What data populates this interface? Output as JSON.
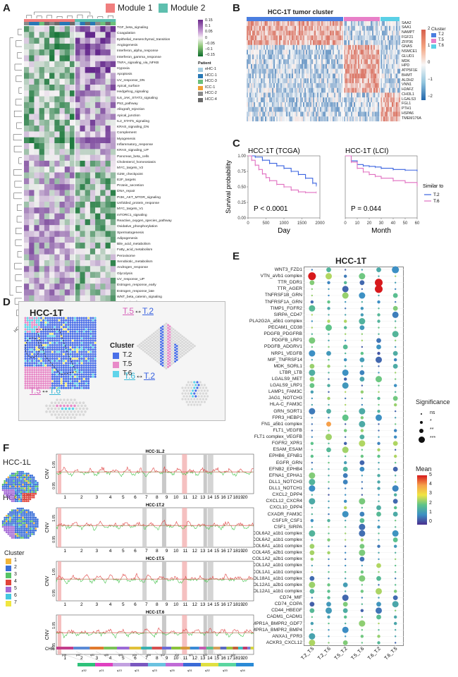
{
  "panels": {
    "a": "A",
    "b": "B",
    "c": "C",
    "d": "D",
    "e": "E",
    "f": "F"
  },
  "a": {
    "modules": [
      "Module 1",
      "Module 2"
    ],
    "module_colors": [
      "#f07e7e",
      "#5dbfae"
    ],
    "legend_title": "Patient",
    "patients": [
      "eHC-1",
      "HCC-1",
      "HCC-3",
      "ICC-1",
      "HCC-2",
      "HCC-4"
    ],
    "patient_colors": [
      "#a5cde0",
      "#2878b5",
      "#6cc07a",
      "#f0a035",
      "#8a8a8a",
      "#6b6b6b"
    ],
    "scale_ticks": [
      "0.15",
      "0.1",
      "0.05",
      "0",
      "−0.05",
      "−0.1",
      "−0.15"
    ],
    "rows": [
      "TGF_beta_signaling",
      "Coagulation",
      "Epithelial_mesenchymal_transition",
      "Angiogenesis",
      "Interferon_alpha_response",
      "Interferon_gamma_response",
      "TNFA_signaling_via_NFKB",
      "Hypoxia",
      "Apoptosis",
      "UV_response_DN",
      "Apical_surface",
      "Hedgehog_signaling",
      "IL6_JAK_STAT3_signaling",
      "P53_pathway",
      "Allograft_rejection",
      "Apical_junction",
      "IL2_STAT5_signaling",
      "KRAS_signaling_DN",
      "Complement",
      "Myogenesis",
      "Inflammatory_response",
      "KRAS_signaling_UP",
      "Pancreas_beta_cells",
      "Cholesterol_homeostasis",
      "MYC_targets_V2",
      "G2M_checkpoint",
      "E2F_targets",
      "Protein_secretion",
      "DNA_repair",
      "PI3K_AKT_MTOR_signaling",
      "Unfolded_protein_response",
      "MYC_targets_V1",
      "mTORC1_signaling",
      "Reactive_oxygen_species_pathway",
      "Oxidative_phosphorylation",
      "Spermatogenesis",
      "Adipogenesis",
      "Bile_acid_metabolism",
      "Fatty_acid_metabolism",
      "Peroxisome",
      "Xenobiotic_metabolism",
      "Androgen_response",
      "Glycolysis",
      "UV_response_UP",
      "Estrogen_response_early",
      "Estrogen_response_late",
      "WNT_beta_catenin_signaling",
      "Notch_signaling",
      "Mitotic_spindle",
      "Heme_metabolism"
    ],
    "cols": [
      "HCC-4_6",
      "HCC-1_2",
      "HCC-1_3",
      "HCC-3_1",
      "HCC-4_1",
      "HCC-2_1",
      "HCC-4_3",
      "HCC-1_5",
      "HCC-1_4",
      "HCC-4_2",
      "eHC-1",
      "HCC-1_1",
      "HCC-4_5",
      "HCC-1_6",
      "HCC-2_2",
      "HCC-3_2",
      "HCC-4_4",
      "HCC-3_3"
    ]
  },
  "b": {
    "title": "HCC-1T tumor cluster",
    "cluster_label": "Cluster",
    "genes": [
      "SAA2",
      "SAA1",
      "NAMPT",
      "FGF21",
      "ZFP36",
      "GNAS",
      "NSMCE1",
      "GLUD1",
      "MDK",
      "HPD",
      "ATP5F1E",
      "BHMT",
      "ALDH2",
      "VNN1",
      "H2AFZ",
      "CHI3L1",
      "LGALS3",
      "FGL1",
      "PTH1",
      "HSPA6",
      "TMEM176A"
    ],
    "clusters": [
      "T.2",
      "T.5",
      "T.6"
    ],
    "cluster_colors": [
      "#4a7ee0",
      "#e87fc8",
      "#5ad0e6"
    ],
    "scale_ticks": [
      "2",
      "1",
      "0",
      "−1",
      "−2"
    ]
  },
  "c": {
    "chart_data": [
      {
        "type": "line",
        "title": "HCC-1T (TCGA)",
        "xlabel": "Day",
        "ylabel": "Survival probability",
        "xlim": [
          0,
          2000
        ],
        "ylim": [
          0,
          1
        ],
        "xticks": [
          "0",
          "500",
          "1000",
          "1500",
          "2000"
        ],
        "yticks": [
          "0.00",
          "0.25",
          "0.50",
          "0.75",
          "1.00"
        ],
        "pvalue": "P < 0.0001",
        "series": [
          {
            "name": "T.2",
            "x": [
              0,
              200,
              400,
              600,
              800,
              1000,
              1200,
              1400,
              1600,
              1800,
              1900
            ],
            "values": [
              1,
              0.98,
              0.93,
              0.88,
              0.84,
              0.8,
              0.75,
              0.7,
              0.64,
              0.56,
              0.52
            ]
          },
          {
            "name": "T.6",
            "x": [
              0,
              100,
              200,
              300,
              400,
              500,
              600,
              800,
              1000,
              1200,
              1400,
              1600,
              1900
            ],
            "values": [
              1,
              0.93,
              0.85,
              0.78,
              0.71,
              0.65,
              0.6,
              0.54,
              0.5,
              0.45,
              0.42,
              0.41,
              0.41
            ]
          }
        ]
      },
      {
        "type": "line",
        "title": "HCC-1T (LCI)",
        "xlabel": "Month",
        "ylabel": "",
        "xlim": [
          0,
          60
        ],
        "ylim": [
          0,
          1
        ],
        "xticks": [
          "0",
          "10",
          "20",
          "30",
          "40",
          "50",
          "60"
        ],
        "yticks": [],
        "pvalue": "P = 0.044",
        "series": [
          {
            "name": "T.2",
            "x": [
              0,
              5,
              10,
              15,
              20,
              25,
              30,
              40,
              50,
              60
            ],
            "values": [
              1,
              0.92,
              0.86,
              0.84,
              0.83,
              0.82,
              0.8,
              0.78,
              0.77,
              0.76
            ]
          },
          {
            "name": "T.6",
            "x": [
              0,
              5,
              10,
              15,
              20,
              25,
              30,
              40,
              50,
              60
            ],
            "values": [
              1,
              0.9,
              0.8,
              0.74,
              0.7,
              0.67,
              0.64,
              0.6,
              0.57,
              0.52
            ]
          }
        ]
      }
    ],
    "legend_title": "Similar to",
    "legend": [
      "T.2",
      "T.6"
    ],
    "colors": [
      "#3a63e0",
      "#e06fc0"
    ]
  },
  "d": {
    "title": "HCC-1T",
    "cluster_label": "Cluster",
    "clusters": [
      "T.2",
      "T.5",
      "T.6"
    ],
    "pair1": [
      "T.5",
      "T.2"
    ],
    "pair2": [
      "T.6",
      "T.2"
    ],
    "pair3": [
      "T.5",
      "T.6"
    ],
    "arrow": "↔"
  },
  "e": {
    "title": "HCC-1T",
    "rows": [
      "WNT3_FZD1",
      "VTN_aVb1 complex",
      "TTR_DDR1",
      "TTR_AGER",
      "TNFRSF1B_GRN",
      "TNFRSF1A_GRN",
      "TIMP1_FGFR2",
      "SIRPA_CD47",
      "PLA2G2A_a5b1 complex",
      "PECAM1_CD38",
      "PDGFB_PDGFRB",
      "PDGFB_LRP1",
      "PDGFB_ADGRV1",
      "NRP1_VEGFB",
      "MIF_TNFRSF14",
      "MDK_SORL1",
      "LTBR_LTB",
      "LGALS9_MET",
      "LGALS9_LRP1",
      "LAMP1_FAM3C",
      "JAG1_NOTCH3",
      "HLA-C_FAM3C",
      "GRN_SORT1",
      "FPR3_HEBP1",
      "FN1_a5b1 complex",
      "FLT1_VEGFB",
      "FLT1 complex_VEGFB",
      "FGFR2_XPR1",
      "ESAM_ESAM",
      "EPHB6_EFNB1",
      "EGFR_GRN",
      "EFNB2_EPHB4",
      "EFNA1_EPHA1",
      "DLL1_NOTCH3",
      "DLL1_NOTCH1",
      "CXCL2_DPP4",
      "CXCL12_CXCR4",
      "CXCL10_DPP4",
      "CXADR_FAM3C",
      "CSF1R_CSF1",
      "CSF1_SIRPA",
      "COL6A2_a1b1 complex",
      "COL6A2_a1b1 complex",
      "COL6A1_a1b1 complex",
      "COL4A5_a2b1 complex",
      "COL1A2_a2b1 complex",
      "COL1A2_a1b1 complex",
      "COL1A1_a1b1 complex",
      "COL18A1_a1b1 complex",
      "COL12A1_a2b1 complex",
      "COL12A1_a1b1 complex",
      "CD74_MIF",
      "CD74_COPA",
      "CD44_HBEGF",
      "CADM1_CADM1",
      "BMPR1A_BMPR2_GDF7",
      "BMPR1A_BMPR2_BMP4",
      "ANXA1_FPR3",
      "ACKR3_CXCL12"
    ],
    "cols": [
      "T.2_T.5",
      "T.2_T.6",
      "T.5_T.2",
      "T.5_T.6",
      "T.6_T.2",
      "T.6_T.5"
    ],
    "sig_title": "Significance",
    "sig_levels": [
      "ns",
      "*",
      "**",
      "***"
    ],
    "mean_title": "Mean",
    "mean_ticks": [
      "5",
      "4",
      "3",
      "2",
      "1",
      "0"
    ]
  },
  "f": {
    "samples": [
      "HCC-1L",
      "HCC-1T"
    ],
    "tracks": [
      "HCC-1L.2",
      "HCC-1T.2",
      "HCC-1T.5",
      "HCC-1T.6"
    ],
    "ylabel": "CNV",
    "yticks": [
      "1.05",
      "0.95"
    ],
    "chroms": [
      "1",
      "2",
      "3",
      "4",
      "5",
      "6",
      "7",
      "8",
      "9",
      "10",
      "11",
      "12",
      "13",
      "14",
      "15",
      "16",
      "17",
      "18",
      "19",
      "20",
      "21",
      "22"
    ],
    "chr_label": "CHR",
    "cluster_label": "Cluster",
    "clusters": [
      "1",
      "2",
      "3",
      "4",
      "5",
      "6",
      "7"
    ],
    "cluster_colors": [
      "#f2b63a",
      "#3a6fd8",
      "#56c466",
      "#e0443a",
      "#a56ad6",
      "#44c8e0",
      "#f0e640"
    ],
    "bands1": [
      "p36",
      "p34",
      "q31",
      "q35",
      "q43",
      "p24",
      "q34",
      "q12",
      "q13",
      "q21",
      "q22",
      "q23",
      "q24"
    ],
    "bands2": [
      "p32",
      "p21",
      "q13",
      "q21",
      "q23",
      "q25",
      "q31",
      "q32",
      "q33",
      "q34"
    ]
  }
}
